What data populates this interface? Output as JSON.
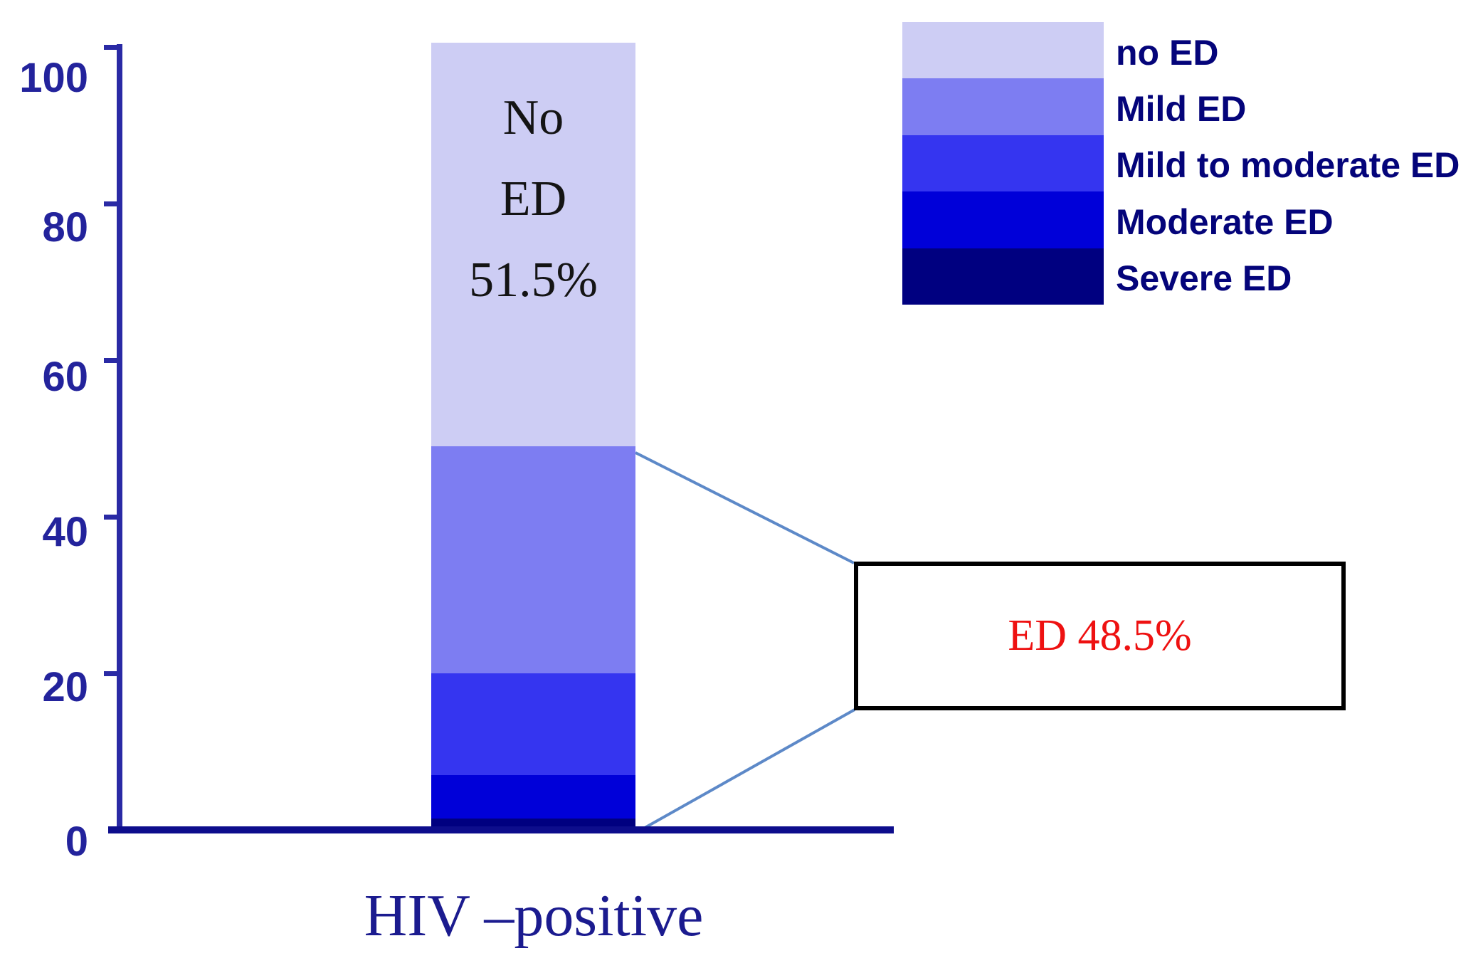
{
  "axis": {
    "y_tick_labels": [
      "100",
      "80",
      "60",
      "40",
      "20",
      "0"
    ],
    "y_range": [
      0,
      100
    ],
    "category_label": "HIV –positive",
    "axis_color": "#2a2aa5",
    "label_color": "#23239c"
  },
  "bar": {
    "inside_label_lines": [
      "No",
      "ED",
      "51.5%"
    ],
    "segments_top_to_bottom": [
      {
        "name": "no ED",
        "value": 51.5,
        "color": "#cdcdf4"
      },
      {
        "name": "Mild ED",
        "value": 29.0,
        "color": "#7d7df2"
      },
      {
        "name": "Mild to moderate ED",
        "value": 13.0,
        "color": "#3535f0"
      },
      {
        "name": "Moderate ED",
        "value": 5.5,
        "color": "#0000d9"
      },
      {
        "name": "Severe ED",
        "value": 1.0,
        "color": "#000080"
      }
    ]
  },
  "legend": {
    "entries": [
      {
        "label": "no ED",
        "color": "#cdcdf4"
      },
      {
        "label": "Mild ED",
        "color": "#7d7df2"
      },
      {
        "label": "Mild to moderate ED",
        "color": "#3535f0"
      },
      {
        "label": "Moderate ED",
        "color": "#0000d9"
      },
      {
        "label": "Severe ED",
        "color": "#000080"
      }
    ],
    "text_color": "#04047a"
  },
  "callout": {
    "text": "ED 48.5%",
    "text_color": "#ee1111",
    "connector_color": "#5d89c8"
  },
  "chart_data": {
    "type": "bar",
    "stacked": true,
    "categories": [
      "HIV –positive"
    ],
    "series": [
      {
        "name": "Severe ED",
        "values": [
          1.0
        ]
      },
      {
        "name": "Moderate ED",
        "values": [
          5.5
        ]
      },
      {
        "name": "Mild to moderate ED",
        "values": [
          13.0
        ]
      },
      {
        "name": "Mild ED",
        "values": [
          29.0
        ]
      },
      {
        "name": "no ED",
        "values": [
          51.5
        ]
      }
    ],
    "title": "",
    "xlabel": "HIV –positive",
    "ylabel": "",
    "ylim": [
      0,
      100
    ],
    "yticks": [
      0,
      20,
      40,
      60,
      80,
      100
    ],
    "grid": false,
    "legend_position": "top-right",
    "annotations": [
      "No ED 51.5% (inside top segment)",
      "ED 48.5% (red, boxed callout)"
    ]
  }
}
